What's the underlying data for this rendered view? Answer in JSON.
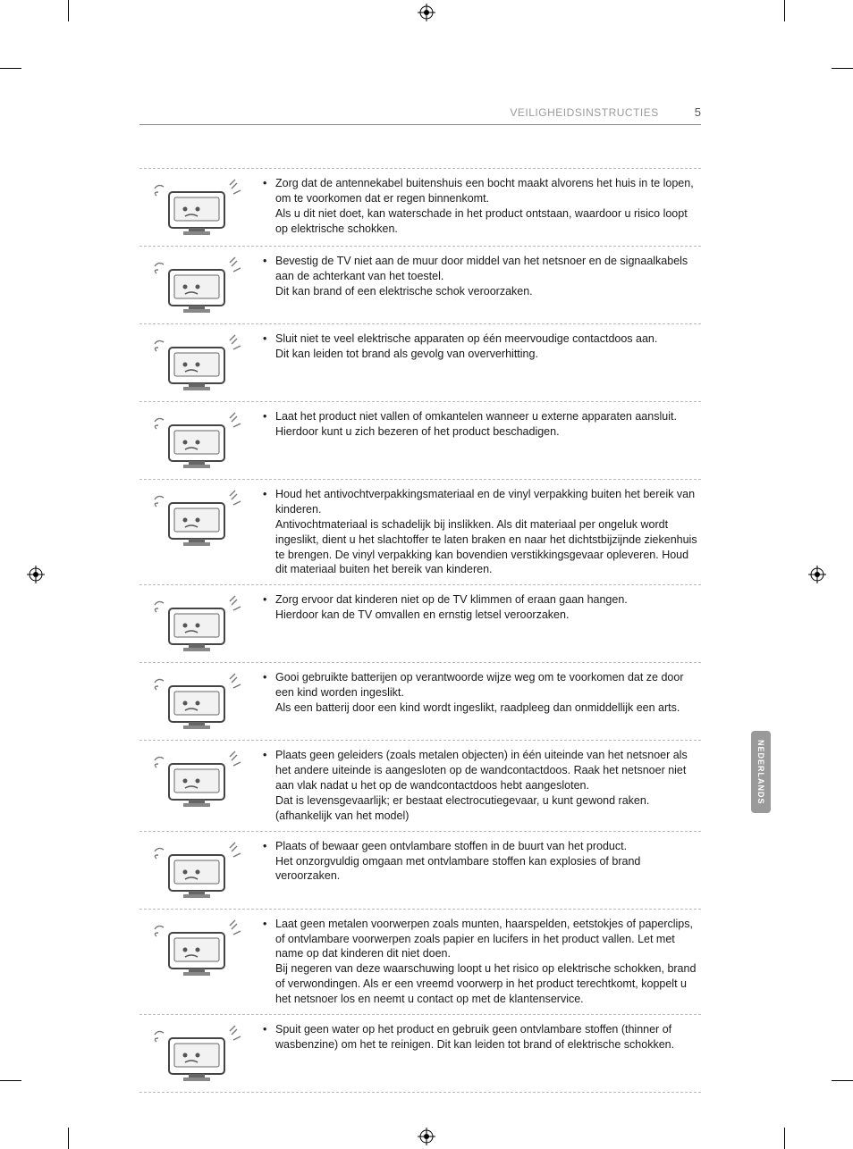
{
  "header": {
    "title": "VEILIGHEIDSINSTRUCTIES",
    "page_number": "5"
  },
  "side_tab": {
    "label": "NEDERLANDS"
  },
  "colors": {
    "text": "#1a1a1a",
    "muted": "#9a9a9a",
    "dash": "#bbbbbb",
    "tab_bg": "#9a9a9a",
    "tab_text": "#ffffff"
  },
  "rows": [
    {
      "text": "Zorg dat de antennekabel buitenshuis een bocht maakt alvorens het huis in te lopen, om te voorkomen dat er regen binnenkomt.\nAls u dit niet doet, kan waterschade in het product ontstaan, waardoor u risico loopt op elektrische schokken."
    },
    {
      "text": "Bevestig de TV niet aan de muur door middel van het netsnoer en de signaalkabels aan de achterkant van het toestel.\nDit kan brand of een elektrische schok veroorzaken."
    },
    {
      "text": "Sluit niet te veel elektrische apparaten op één meervoudige contactdoos aan.\nDit kan leiden tot brand als gevolg van oververhitting."
    },
    {
      "text": "Laat het product niet vallen of omkantelen wanneer u externe apparaten aansluit.\nHierdoor kunt u zich bezeren of het product beschadigen."
    },
    {
      "text": "Houd het antivochtverpakkingsmateriaal en de vinyl verpakking buiten het bereik van kinderen.\nAntivochtmateriaal is schadelijk bij inslikken. Als dit materiaal per ongeluk wordt ingeslikt, dient u het slachtoffer te laten braken en naar het dichtstbijzijnde ziekenhuis te brengen. De vinyl verpakking kan bovendien verstikkingsgevaar opleveren. Houd dit materiaal buiten het bereik van kinderen."
    },
    {
      "text": "Zorg ervoor dat kinderen niet op de TV klimmen of eraan gaan hangen.\nHierdoor kan de TV omvallen en ernstig letsel veroorzaken."
    },
    {
      "text": "Gooi gebruikte batterijen op verantwoorde wijze weg om te voorkomen dat ze door een kind worden ingeslikt.\nAls een batterij door een kind wordt ingeslikt, raadpleeg dan onmiddellijk een arts."
    },
    {
      "text": "Plaats geen geleiders (zoals metalen objecten) in één uiteinde van het netsnoer als het andere uiteinde is aangesloten op de wandcontactdoos. Raak het netsnoer niet aan vlak nadat u het op de wandcontactdoos hebt aangesloten.\nDat is levensgevaarlijk; er bestaat electrocutiegevaar, u kunt gewond raken. (afhankelijk van het model)"
    },
    {
      "text": "Plaats of bewaar geen ontvlambare stoffen in de buurt van het product.\nHet onzorgvuldig omgaan met ontvlambare stoffen kan explosies of brand veroorzaken."
    },
    {
      "text": "Laat geen metalen voorwerpen zoals munten, haarspelden, eetstokjes of paperclips, of ontvlambare voorwerpen zoals papier en lucifers in het product vallen. Let met name op dat kinderen dit niet doen.\nBij negeren van deze waarschuwing loopt u het risico op elektrische schokken, brand of verwondingen. Als er een vreemd voorwerp in het product terechtkomt, koppelt u het netsnoer los en neemt u contact op met de klantenservice."
    },
    {
      "text": "Spuit geen water op het product en gebruik geen ontvlambare stoffen (thinner of wasbenzine) om het te reinigen. Dit kan leiden tot brand of elektrische schokken."
    }
  ]
}
